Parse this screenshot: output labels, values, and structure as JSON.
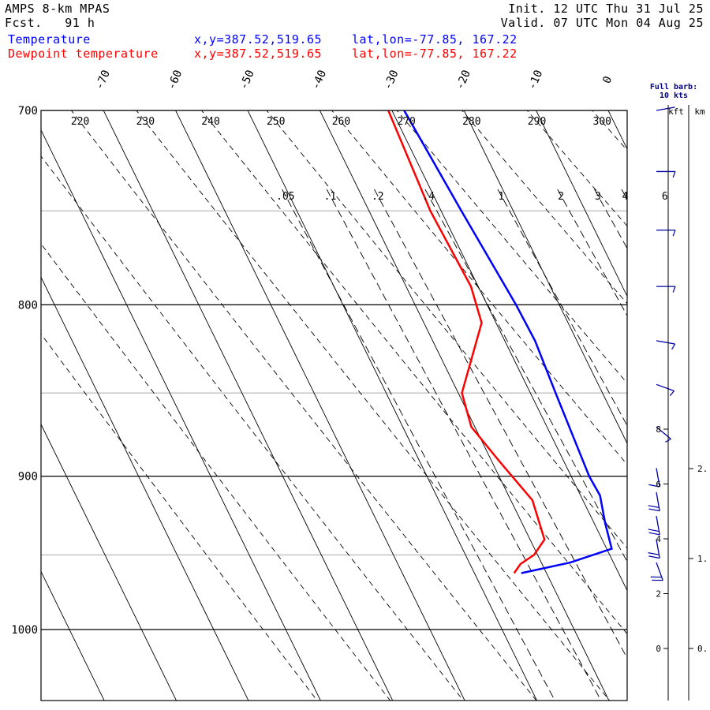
{
  "header": {
    "model": "AMPS 8-km MPAS",
    "fcst_label": "Fcst.",
    "fcst_hours": "91 h",
    "init": "Init. 12 UTC Thu 31 Jul 25",
    "valid": "Valid. 07 UTC Mon 04 Aug 25"
  },
  "legend": [
    {
      "name": "Temperature",
      "color": "#0000ff",
      "xy": "x,y=387.52,519.65",
      "latlon": "lat,lon=-77.85, 167.22"
    },
    {
      "name": "Dewpoint temperature",
      "color": "#ff0000",
      "xy": "x,y=387.52,519.65",
      "latlon": "lat,lon=-77.85, 167.22"
    }
  ],
  "barb_key": {
    "line1": "Full barb:",
    "line2": "10 kts"
  },
  "height_axis": {
    "kft_label": "kft",
    "km_label": "km"
  },
  "chart_data": {
    "type": "skew-t",
    "pressure_ticks": [
      700,
      800,
      900,
      1000
    ],
    "pressure_range": [
      700,
      1050
    ],
    "temperature_ticks": [
      -70,
      -60,
      -50,
      -40,
      -30,
      -20,
      -10,
      0
    ],
    "dry_adiabat_labels": [
      220,
      230,
      240,
      250,
      260,
      270,
      280,
      290,
      300
    ],
    "mixing_ratio_labels": [
      ".05",
      ".1",
      ".2",
      ".4",
      "1",
      "2",
      "3",
      "4",
      "6"
    ],
    "mixing_ratio_values": [
      0.05,
      0.1,
      0.2,
      0.4,
      1,
      2,
      3,
      4,
      6
    ],
    "kft_ticks": [
      0,
      2,
      4,
      6,
      8
    ],
    "km_ticks": [
      "0.",
      "1.",
      "2."
    ],
    "series": [
      {
        "name": "Temperature",
        "color": "#0000ff",
        "points": [
          [
            700,
            -28.3
          ],
          [
            750,
            -27.2
          ],
          [
            800,
            -26.0
          ],
          [
            820,
            -25.8
          ],
          [
            850,
            -26.5
          ],
          [
            900,
            -27.5
          ],
          [
            912,
            -27.3
          ],
          [
            930,
            -28.5
          ],
          [
            946,
            -29.3
          ],
          [
            955,
            -36.0
          ],
          [
            962,
            -43.5
          ]
        ]
      },
      {
        "name": "Dewpoint temperature",
        "color": "#ff0000",
        "points": [
          [
            700,
            -30.5
          ],
          [
            750,
            -31.5
          ],
          [
            790,
            -31.0
          ],
          [
            810,
            -32.0
          ],
          [
            850,
            -39.5
          ],
          [
            870,
            -40.5
          ],
          [
            890,
            -39.0
          ],
          [
            915,
            -37.0
          ],
          [
            940,
            -38.0
          ],
          [
            950,
            -40.5
          ],
          [
            956,
            -43.0
          ],
          [
            962,
            -44.5
          ]
        ]
      }
    ],
    "wind_barbs": [
      {
        "p": 700,
        "speed_kt": 4,
        "dir_deg": 280
      },
      {
        "p": 730,
        "speed_kt": 8,
        "dir_deg": 270
      },
      {
        "p": 760,
        "speed_kt": 8,
        "dir_deg": 270
      },
      {
        "p": 790,
        "speed_kt": 8,
        "dir_deg": 270
      },
      {
        "p": 820,
        "speed_kt": 8,
        "dir_deg": 260
      },
      {
        "p": 845,
        "speed_kt": 6,
        "dir_deg": 250
      },
      {
        "p": 870,
        "speed_kt": 6,
        "dir_deg": 230
      },
      {
        "p": 895,
        "speed_kt": 10,
        "dir_deg": 190
      },
      {
        "p": 910,
        "speed_kt": 20,
        "dir_deg": 190
      },
      {
        "p": 925,
        "speed_kt": 20,
        "dir_deg": 190
      },
      {
        "p": 940,
        "speed_kt": 20,
        "dir_deg": 190
      },
      {
        "p": 955,
        "speed_kt": 20,
        "dir_deg": 200
      }
    ]
  }
}
